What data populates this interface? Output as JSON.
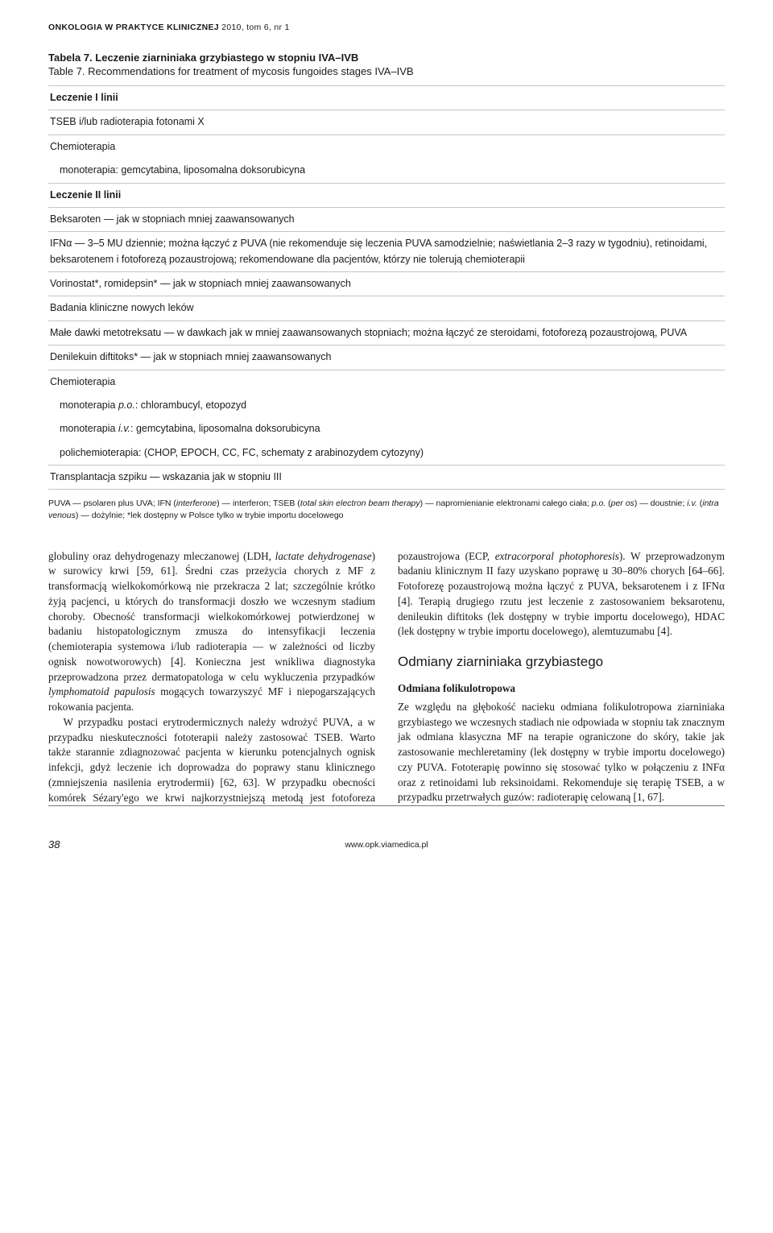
{
  "running_head": {
    "bold": "ONKOLOGIA W PRAKTYCE KLINICZNEJ",
    "light": " 2010, tom 6, nr 1"
  },
  "table": {
    "title": "Tabela 7. Leczenie ziarniniaka grzybiastego w stopniu IVA–IVB",
    "subtitle": "Table 7. Recommendations for treatment of mycosis fungoides stages IVA–IVB",
    "rows": [
      {
        "text": "Leczenie I linii",
        "bold": true
      },
      {
        "text": "TSEB i/lub radioterapia fotonami X"
      },
      {
        "text": "Chemioterapia",
        "continued": true
      },
      {
        "text": "monoterapia: gemcytabina, liposomalna doksorubicyna",
        "indent": true,
        "notop": true
      },
      {
        "text": "Leczenie II linii",
        "bold": true
      },
      {
        "text": "Beksaroten — jak w stopniach mniej zaawansowanych"
      },
      {
        "text": "IFNα — 3–5 MU dziennie; można łączyć z PUVA (nie rekomenduje się leczenia PUVA samodzielnie; naświetlania 2–3 razy w tygodniu), retinoidami, beksarotenem i fotoforezą pozaustrojową; rekomendowane dla pacjentów, którzy nie tolerują chemioterapii"
      },
      {
        "text": "Vorinostat*, romidepsin* — jak w stopniach mniej zaawansowanych"
      },
      {
        "text": "Badania kliniczne nowych leków"
      },
      {
        "text": "Małe dawki metotreksatu — w dawkach jak w mniej zaawansowanych stopniach; można łączyć ze steroidami, fotoforezą pozaustrojową, PUVA"
      },
      {
        "text": "Denilekuin diftitoks* — jak w stopniach mniej zaawansowanych"
      },
      {
        "text": "Chemioterapia",
        "continued": true
      },
      {
        "text": "monoterapia p.o.: chlorambucyl, etopozyd",
        "indent": true,
        "notop": true,
        "continued": true
      },
      {
        "text": "monoterapia i.v.: gemcytabina, liposomalna doksorubicyna",
        "indent": true,
        "notop": true,
        "continued": true
      },
      {
        "text": "polichemioterapia: (CHOP, EPOCH, CC, FC, schematy z arabinozydem cytozyny)",
        "indent": true,
        "notop": true
      },
      {
        "text": "Transplantacja szpiku — wskazania jak w stopniu III"
      }
    ],
    "footnote_parts": [
      "PUVA — psolaren plus UVA; IFN (",
      "interferone",
      ") — interferon; TSEB (",
      "total skin electron beam therapy",
      ") — napromienianie elektronami całego ciała; ",
      "p.o.",
      " (",
      "per os",
      ") — doustnie; ",
      "i.v.",
      " (",
      "intra venous",
      ") — dożylnie; *lek dostępny w Polsce tylko w trybie importu docelowego"
    ]
  },
  "body": {
    "p1a": "globuliny oraz dehydrogenazy mleczanowej (LDH, ",
    "p1b": "lactate dehydrogenase",
    "p1c": ") w surowicy krwi [59, 61]. Średni czas przeżycia chorych z MF z transformacją wielkokomórkową nie przekracza 2 lat; szczególnie krótko żyją pacjenci, u których do transformacji doszło we wczesnym stadium choroby. Obecność transformacji wielkokomórkowej potwierdzonej w badaniu histopatologicznym zmusza do intensyfikacji leczenia (chemioterapia systemowa i/lub radioterapia — w zależności od liczby ognisk nowotworowych) [4]. Konieczna jest wnikliwa diagnostyka przeprowadzona przez dermatopatologa w celu wykluczenia przypadków ",
    "p1d": "lymphomatoid papulosis",
    "p1e": " mogących towarzyszyć MF i niepogarszających rokowania pacjenta.",
    "p2a": "W przypadku postaci erytrodermicznych należy wdrożyć PUVA, a w przypadku nieskuteczności fototerapii należy zastosować TSEB. Warto także starannie zdiagnozować pacjenta w kierunku potencjalnych ognisk infekcji, gdyż leczenie ich doprowadza do poprawy stanu klinicznego (zmniejszenia nasilenia erytrodermii) [62, 63]. W przypadku obecności komórek Sézary'ego we krwi najkorzystniejszą metodą jest fotoforeza pozaustro",
    "p2b": "jowa (ECP, ",
    "p2c": "extracorporal photophoresis",
    "p2d": "). W przeprowadzonym badaniu klinicznym II fazy uzyskano poprawę u 30–80% chorych [64–66]. Fotoforezę pozaustrojową można łączyć z PUVA, beksarotenem i z IFNα [4]. Terapią drugiego rzutu jest leczenie z zastosowaniem beksarotenu, denileukin diftitoks (lek dostępny w trybie importu docelowego), HDAC (lek dostępny w trybie importu docelowego), alemtuzumabu [4].",
    "h2": "Odmiany ziarniniaka grzybiastego",
    "h3": "Odmiana folikulotropowa",
    "p3": "Ze względu na głębokość nacieku odmiana folikulotropowa ziarniniaka grzybiastego we wczesnych stadiach nie odpowiada w stopniu tak znacznym jak odmiana klasyczna MF na terapie ograniczone do skóry, takie jak zastosowanie mechleretaminy (lek dostępny w trybie importu docelowego) czy PUVA. Fototerapię powinno się stosować tylko w połączeniu z INFα oraz z retinoidami lub reksinoidami. Rekomenduje się terapię TSEB, a w przypadku przetrwałych guzów: radioterapię celowaną [1, 67]."
  },
  "footer": {
    "page": "38",
    "url": "www.opk.viamedica.pl"
  }
}
